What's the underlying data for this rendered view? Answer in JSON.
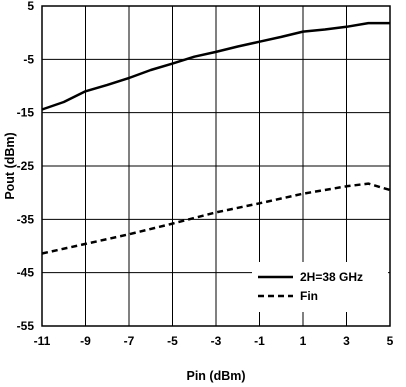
{
  "chart_data": {
    "type": "line",
    "title": "",
    "xlabel": "Pin (dBm)",
    "ylabel": "Pout (dBm)",
    "xlim": [
      -11,
      5
    ],
    "ylim": [
      -55,
      5
    ],
    "x_ticks": [
      "-11",
      "-9",
      "-7",
      "-5",
      "-3",
      "-1",
      "1",
      "3",
      "5"
    ],
    "y_ticks": [
      "5",
      "-5",
      "-15",
      "-25",
      "-35",
      "-45",
      "-55"
    ],
    "grid": true,
    "legend_position": "bottom-right",
    "series": [
      {
        "name": "2H=38 GHz",
        "style": "solid",
        "color": "#000000",
        "points": [
          [
            -11,
            -14.4
          ],
          [
            -10,
            -13
          ],
          [
            -9,
            -11
          ],
          [
            -8,
            -9.8
          ],
          [
            -7,
            -8.5
          ],
          [
            -6,
            -7
          ],
          [
            -5,
            -5.8
          ],
          [
            -4,
            -4.5
          ],
          [
            -3,
            -3.6
          ],
          [
            -2,
            -2.6
          ],
          [
            -1,
            -1.7
          ],
          [
            0,
            -0.8
          ],
          [
            1,
            0.2
          ],
          [
            2,
            0.6
          ],
          [
            3,
            1.1
          ],
          [
            4,
            1.8
          ],
          [
            4.5,
            1.8
          ],
          [
            5,
            1.8
          ]
        ]
      },
      {
        "name": "Fin",
        "style": "dashed",
        "color": "#000000",
        "points": [
          [
            -11,
            -41.4
          ],
          [
            -9,
            -39.6
          ],
          [
            -7,
            -37.8
          ],
          [
            -5,
            -35.8
          ],
          [
            -3,
            -33.7
          ],
          [
            -1,
            -32
          ],
          [
            1,
            -30.2
          ],
          [
            3,
            -28.8
          ],
          [
            4,
            -28.3
          ],
          [
            5,
            -29.5
          ]
        ]
      }
    ]
  }
}
